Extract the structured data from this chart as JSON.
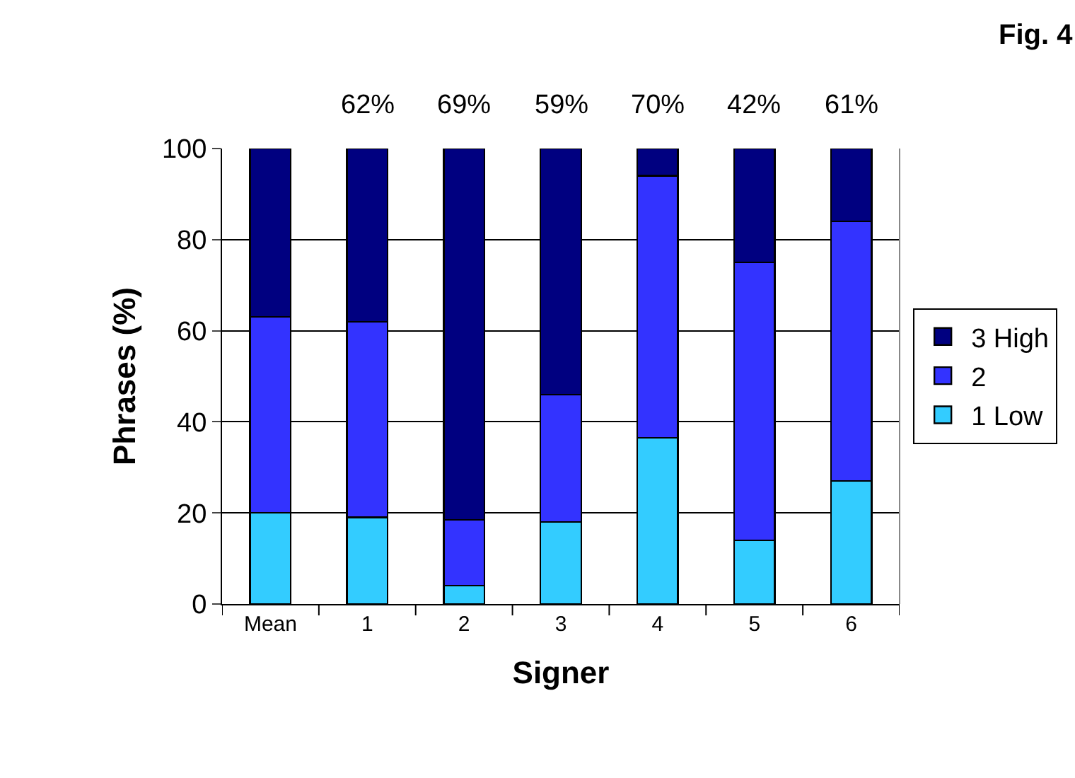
{
  "chart_data": {
    "type": "bar",
    "stacked": true,
    "xlabel": "Signer",
    "ylabel": "Phrases (%)",
    "categories": [
      "Mean",
      "1",
      "2",
      "3",
      "4",
      "5",
      "6"
    ],
    "series": [
      {
        "name": "1 Low",
        "color": "#33ccff",
        "values": [
          20,
          19,
          4,
          18,
          36.5,
          14,
          27
        ]
      },
      {
        "name": "2",
        "color": "#3333ff",
        "values": [
          43,
          43,
          14.5,
          28,
          57.5,
          61,
          57
        ]
      },
      {
        "name": "3 High",
        "color": "#000080",
        "values": [
          37,
          38,
          81.5,
          54,
          6,
          25,
          16
        ]
      }
    ],
    "ylim": [
      0,
      100
    ],
    "yticks": [
      0,
      20,
      40,
      60,
      80,
      100
    ],
    "grid": "y",
    "legend": "right",
    "annotations": [
      "Fig. 4",
      "62%",
      "69%",
      "59%",
      "70%",
      "42%",
      "61%"
    ]
  }
}
